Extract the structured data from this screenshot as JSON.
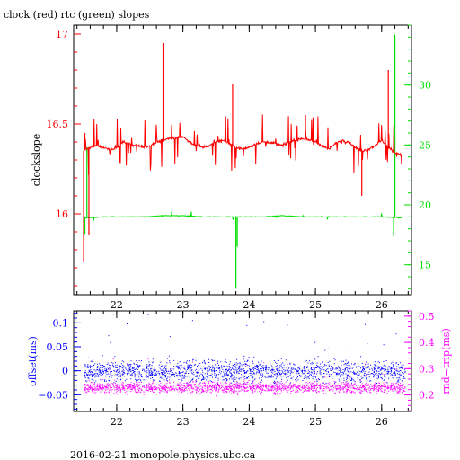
{
  "colors": {
    "clock": "#ff0000",
    "rtc": "#00e000",
    "offset": "#0000ff",
    "rndtrip": "#ff00ff",
    "axes": "#000000"
  },
  "footer": "2016-02-21  monopole.physics.ubc.ca",
  "chart_data": [
    {
      "type": "line",
      "title": "clock (red) rtc (green) slopes",
      "ylabel": "clockslope",
      "xlim": [
        21.35,
        26.45
      ],
      "ylim": [
        15.55,
        17.05
      ],
      "y2lim": [
        12.5,
        35.0
      ],
      "x_ticks": [
        "22",
        "23",
        "24",
        "25",
        "26"
      ],
      "y_ticks": [
        "16",
        "16.5",
        "17"
      ],
      "y2_ticks": [
        "15",
        "20",
        "25",
        "30"
      ],
      "grid": false,
      "series": [
        {
          "name": "clock",
          "axis": "left",
          "x": [
            21.5,
            21.6,
            21.7,
            21.8,
            21.9,
            22.0,
            22.1,
            22.2,
            22.3,
            22.4,
            22.5,
            22.6,
            22.7,
            22.8,
            22.9,
            23.0,
            23.1,
            23.2,
            23.3,
            23.4,
            23.5,
            23.6,
            23.7,
            23.8,
            23.9,
            24.0,
            24.1,
            24.2,
            24.3,
            24.4,
            24.5,
            24.6,
            24.7,
            24.8,
            24.9,
            25.0,
            25.1,
            25.2,
            25.3,
            25.4,
            25.5,
            25.6,
            25.7,
            25.8,
            25.9,
            26.0,
            26.1,
            26.2,
            26.3
          ],
          "y": [
            16.35,
            16.37,
            16.38,
            16.37,
            16.36,
            16.37,
            16.4,
            16.39,
            16.38,
            16.37,
            16.38,
            16.4,
            16.41,
            16.42,
            16.42,
            16.43,
            16.4,
            16.38,
            16.37,
            16.38,
            16.4,
            16.41,
            16.39,
            16.37,
            16.36,
            16.37,
            16.39,
            16.4,
            16.4,
            16.39,
            16.38,
            16.4,
            16.41,
            16.42,
            16.41,
            16.4,
            16.38,
            16.36,
            16.39,
            16.41,
            16.4,
            16.37,
            16.35,
            16.36,
            16.38,
            16.41,
            16.37,
            16.34,
            16.33
          ],
          "spikes": [
            [
              21.5,
              15.73
            ],
            [
              21.52,
              16.45
            ],
            [
              21.58,
              15.88
            ],
            [
              22.7,
              16.95
            ],
            [
              23.75,
              16.72
            ],
            [
              24.85,
              16.55
            ],
            [
              25.7,
              16.1
            ],
            [
              26.1,
              16.8
            ]
          ]
        },
        {
          "name": "rtc",
          "axis": "right",
          "x": [
            21.5,
            21.8,
            22.1,
            22.4,
            22.7,
            23.0,
            23.3,
            23.6,
            23.9,
            24.2,
            24.5,
            24.8,
            25.1,
            25.4,
            25.7,
            26.0,
            26.2,
            26.3
          ],
          "y": [
            18.9,
            19.0,
            19.0,
            19.0,
            19.1,
            19.1,
            19.0,
            19.0,
            19.0,
            19.0,
            19.1,
            19.0,
            19.0,
            19.0,
            19.0,
            19.0,
            18.95,
            18.9
          ],
          "spikes": [
            [
              21.52,
              17.5
            ],
            [
              21.55,
              24.8
            ],
            [
              23.8,
              13.0
            ],
            [
              23.82,
              16.5
            ],
            [
              26.18,
              17.4
            ],
            [
              26.2,
              34.2
            ]
          ]
        }
      ]
    },
    {
      "type": "scatter",
      "ylabel": "offset(ms)",
      "y2label": "rnd−trip(ms)",
      "xlim": [
        21.35,
        26.45
      ],
      "ylim": [
        -0.085,
        0.125
      ],
      "y2lim": [
        0.137,
        0.52
      ],
      "x_ticks": [
        "22",
        "23",
        "24",
        "25",
        "26"
      ],
      "y_ticks": [
        "−0.05",
        "0",
        "0.05",
        "0.1"
      ],
      "y2_ticks": [
        "0.2",
        "0.3",
        "0.4",
        "0.5"
      ],
      "grid": false,
      "series": [
        {
          "name": "offset",
          "axis": "left",
          "center": 0.0,
          "spread": 0.024,
          "x_range": [
            21.5,
            26.35
          ]
        },
        {
          "name": "rnd-trip",
          "axis": "right",
          "center": 0.23,
          "spread": 0.022,
          "x_range": [
            21.5,
            26.35
          ]
        }
      ]
    }
  ]
}
